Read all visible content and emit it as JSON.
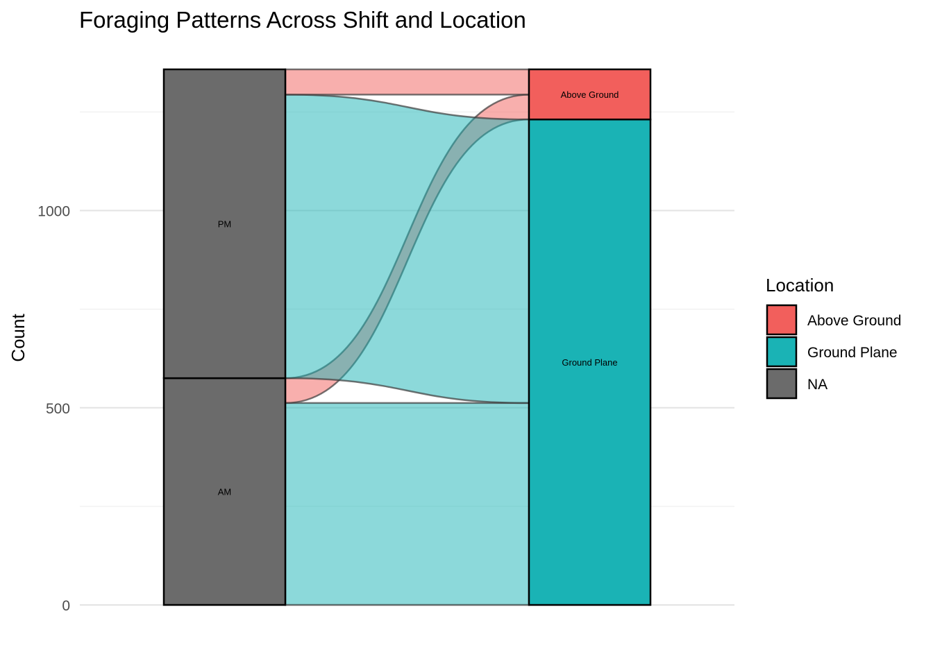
{
  "chart_data": {
    "type": "alluvial",
    "title": "Foraging Patterns Across Shift and Location",
    "ylabel": "Count",
    "xlabel": "",
    "ylim": [
      0,
      1360
    ],
    "yticks": [
      0,
      500,
      1000
    ],
    "axes": [
      "Shift",
      "Location"
    ],
    "strata": {
      "Shift": [
        {
          "name": "AM",
          "value": 575,
          "color": "#6b6b6b"
        },
        {
          "name": "PM",
          "value": 783,
          "color": "#6b6b6b"
        }
      ],
      "Location": [
        {
          "name": "Ground Plane",
          "value": 1231,
          "color": "#1ab3b5"
        },
        {
          "name": "Above Ground",
          "value": 127,
          "color": "#f25f5c"
        }
      ]
    },
    "flows": [
      {
        "from": "AM",
        "to": "Ground Plane",
        "value": 512,
        "color": "#1ab3b5"
      },
      {
        "from": "AM",
        "to": "Above Ground",
        "value": 63,
        "color": "#f25f5c"
      },
      {
        "from": "PM",
        "to": "Ground Plane",
        "value": 719,
        "color": "#1ab3b5"
      },
      {
        "from": "PM",
        "to": "Above Ground",
        "value": 64,
        "color": "#f25f5c"
      }
    ],
    "legend": {
      "title": "Location",
      "position": "right",
      "items": [
        {
          "label": "Above Ground",
          "color": "#f25f5c"
        },
        {
          "label": "Ground Plane",
          "color": "#1ab3b5"
        },
        {
          "label": "NA",
          "color": "#6b6b6b"
        }
      ]
    },
    "grid": true
  }
}
